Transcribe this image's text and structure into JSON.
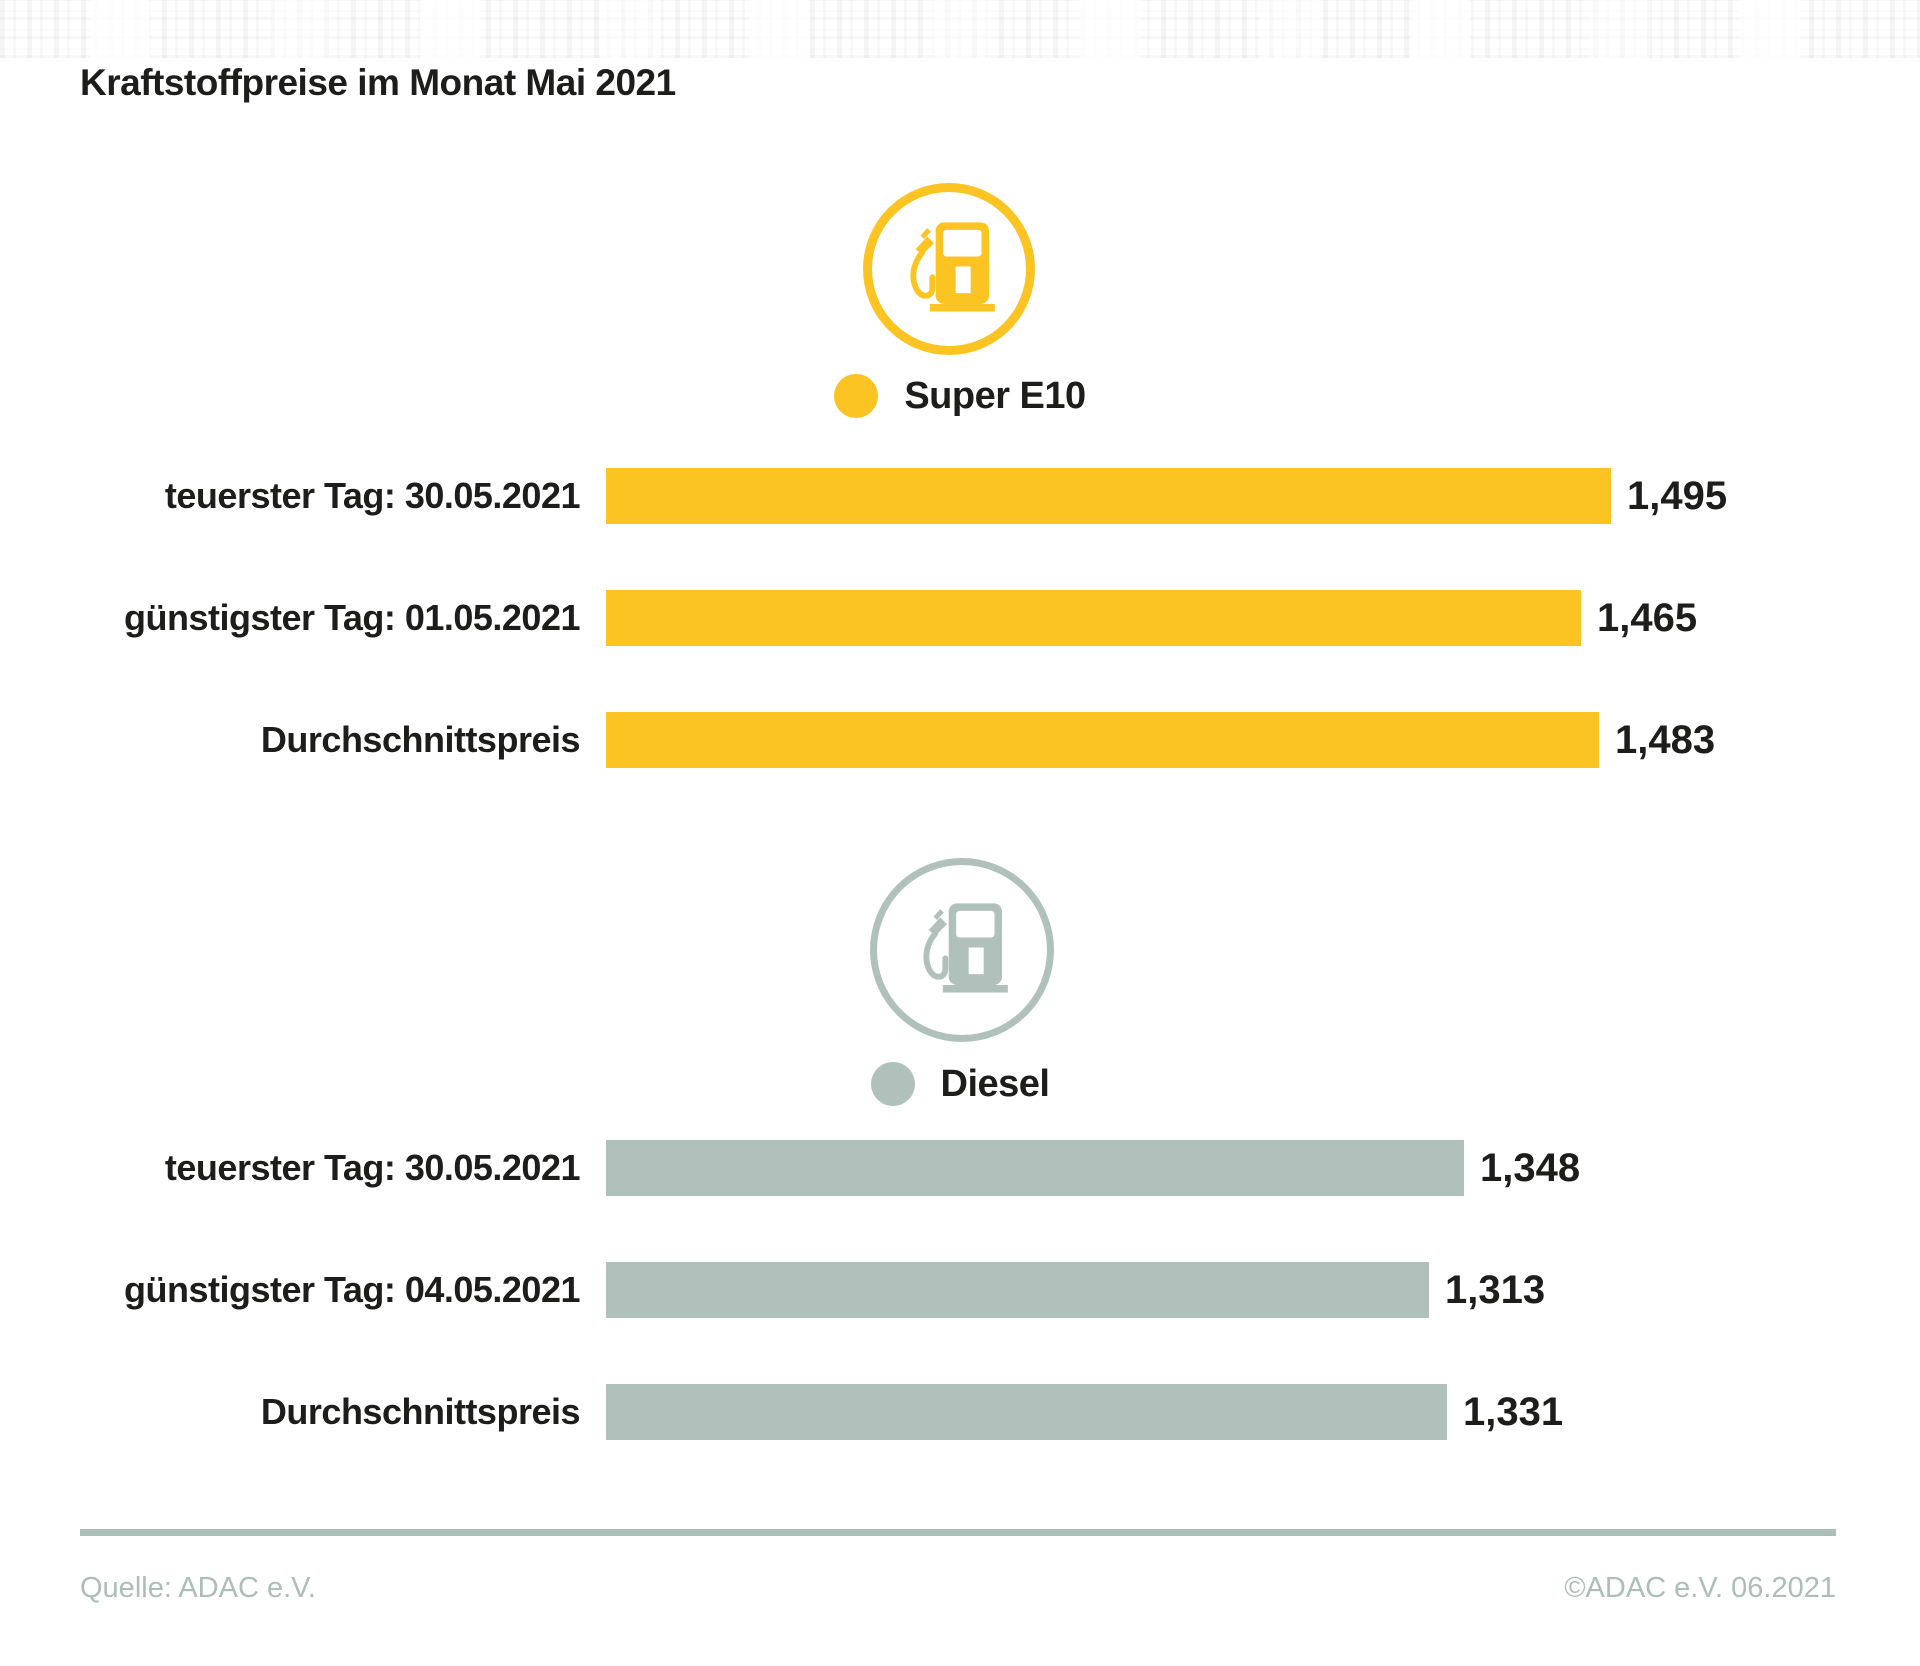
{
  "title": "Kraftstoffpreise im Monat Mai 2021",
  "colors": {
    "super_e10": "#FBC423",
    "diesel": "#B0C0BB",
    "text": "#1D1D1B",
    "footer": "#ABBEB8",
    "background": "#FFFFFF"
  },
  "icons": {
    "super_e10": "fuel-pump-icon",
    "diesel": "fuel-pump-icon"
  },
  "chart_data": [
    {
      "type": "bar",
      "orientation": "horizontal",
      "legend": {
        "label": "Super E10",
        "color": "#FBC423",
        "position": "top-center",
        "marker": "circle"
      },
      "categories": [
        "teuerster Tag: 30.05.2021",
        "günstigster Tag: 01.05.2021",
        "Durchschnittspreis"
      ],
      "values": [
        1.495,
        1.465,
        1.483
      ],
      "value_labels": [
        "1,495",
        "1,465",
        "1,483"
      ],
      "value_label_position": "right-of-bar",
      "grid": false,
      "axis_visible": false,
      "note": "bar lengths not zero-based; ~1 px per 0.001"
    },
    {
      "type": "bar",
      "orientation": "horizontal",
      "legend": {
        "label": "Diesel",
        "color": "#B0C0BB",
        "position": "top-center",
        "marker": "circle"
      },
      "categories": [
        "teuerster Tag: 30.05.2021",
        "günstigster Tag: 04.05.2021",
        "Durchschnittspreis"
      ],
      "values": [
        1.348,
        1.313,
        1.331
      ],
      "value_labels": [
        "1,348",
        "1,313",
        "1,331"
      ],
      "value_label_position": "right-of-bar",
      "grid": false,
      "axis_visible": false,
      "note": "bar lengths not zero-based; ~1 px per 0.001"
    }
  ],
  "footer": {
    "source": "Quelle: ADAC e.V.",
    "copyright": "©ADAC e.V. 06.2021"
  }
}
